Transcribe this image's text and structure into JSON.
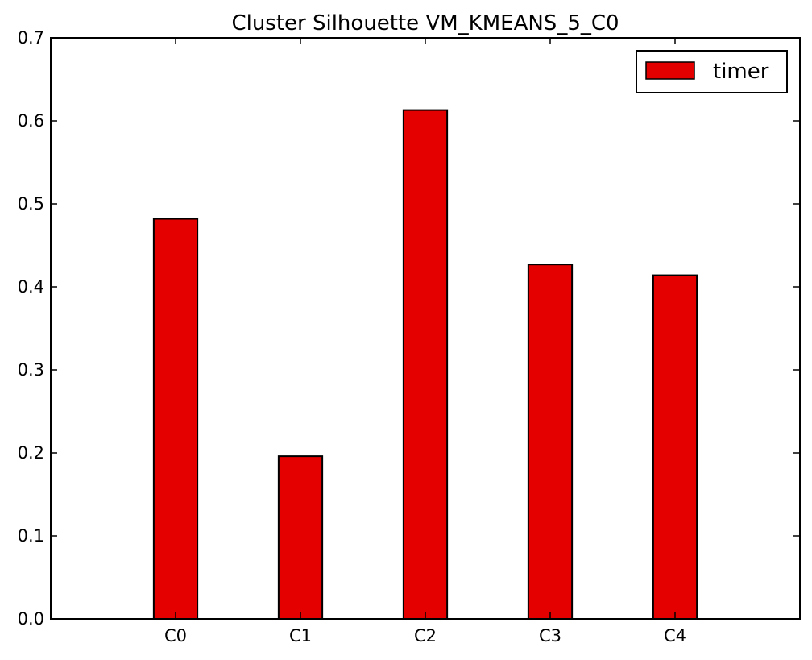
{
  "chart_data": {
    "type": "bar",
    "title": "Cluster Silhouette VM_KMEANS_5_C0",
    "xlabel": "",
    "ylabel": "",
    "categories": [
      "C0",
      "C1",
      "C2",
      "C3",
      "C4"
    ],
    "series": [
      {
        "name": "timer",
        "color": "#e50000",
        "values": [
          0.482,
          0.196,
          0.613,
          0.427,
          0.414
        ]
      }
    ],
    "ylim": [
      0,
      0.7
    ],
    "yticks": [
      0.0,
      0.1,
      0.2,
      0.3,
      0.4,
      0.5,
      0.6,
      0.7
    ],
    "ytick_labels": [
      "0.0",
      "0.1",
      "0.2",
      "0.3",
      "0.4",
      "0.5",
      "0.6",
      "0.7"
    ],
    "grid": false,
    "legend_position": "top-right"
  }
}
